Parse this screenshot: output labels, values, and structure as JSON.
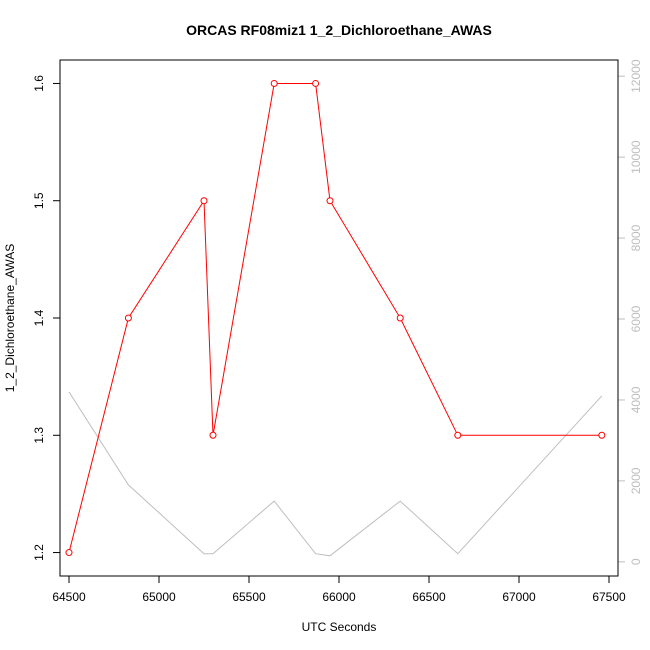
{
  "chart_data": {
    "type": "line",
    "title": "ORCAS RF08miz1 1_2_Dichloroethane_AWAS",
    "xlabel": "UTC Seconds",
    "ylabel": "1_2_Dichloroethane_AWAS",
    "xlim": [
      64450,
      67550
    ],
    "ylim": [
      1.18,
      1.62
    ],
    "y2lim": [
      -350,
      12400
    ],
    "x_ticks": [
      64500,
      65000,
      65500,
      66000,
      66500,
      67000,
      67500
    ],
    "y_ticks": [
      1.2,
      1.3,
      1.4,
      1.5,
      1.6
    ],
    "y2_ticks": [
      0,
      2000,
      4000,
      6000,
      8000,
      10000,
      12000
    ],
    "series": [
      {
        "color": "#ff0000",
        "axis": "left",
        "markers": true,
        "x": [
          64500,
          64830,
          65250,
          65300,
          65640,
          65870,
          65950,
          66340,
          66660,
          67460
        ],
        "y": [
          1.2,
          1.4,
          1.5,
          1.3,
          1.6,
          1.6,
          1.5,
          1.4,
          1.3,
          1.3
        ]
      },
      {
        "color": "#bebebe",
        "axis": "right",
        "markers": false,
        "x": [
          64500,
          64830,
          65250,
          65300,
          65640,
          65870,
          65950,
          66340,
          66660,
          67460
        ],
        "y": [
          4200,
          1900,
          200,
          200,
          1500,
          200,
          150,
          1500,
          200,
          4100
        ]
      }
    ]
  }
}
